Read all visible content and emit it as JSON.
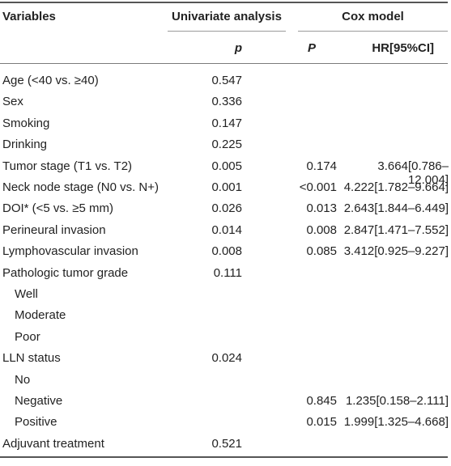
{
  "header": {
    "variables": "Variables",
    "univariate": "Univariate analysis",
    "cox": "Cox model",
    "p_lower": "p",
    "p_upper": "P",
    "hr": "HR[95%CI]"
  },
  "rows": [
    {
      "label": "Age (<40 vs. ≥40)",
      "p": "0.547",
      "cox_p": "",
      "hr": "",
      "indent": false
    },
    {
      "label": "Sex",
      "p": "0.336",
      "cox_p": "",
      "hr": "",
      "indent": false
    },
    {
      "label": "Smoking",
      "p": "0.147",
      "cox_p": "",
      "hr": "",
      "indent": false
    },
    {
      "label": "Drinking",
      "p": "0.225",
      "cox_p": "",
      "hr": "",
      "indent": false
    },
    {
      "label": "Tumor stage (T1 vs. T2)",
      "p": "0.005",
      "cox_p": "0.174",
      "hr": "3.664[0.786–12.004]",
      "indent": false
    },
    {
      "label": "Neck node stage (N0 vs. N+)",
      "p": "0.001",
      "cox_p": "<0.001",
      "hr": "4.222[1.782–9.664]",
      "indent": false
    },
    {
      "label": "DOI* (<5 vs. ≥5 mm)",
      "p": "0.026",
      "cox_p": "0.013",
      "hr": "2.643[1.844–6.449]",
      "indent": false
    },
    {
      "label": "Perineural invasion",
      "p": "0.014",
      "cox_p": "0.008",
      "hr": "2.847[1.471–7.552]",
      "indent": false
    },
    {
      "label": "Lymphovascular invasion",
      "p": "0.008",
      "cox_p": "0.085",
      "hr": "3.412[0.925–9.227]",
      "indent": false
    },
    {
      "label": "Pathologic tumor grade",
      "p": "0.111",
      "cox_p": "",
      "hr": "",
      "indent": false
    },
    {
      "label": "Well",
      "p": "",
      "cox_p": "",
      "hr": "",
      "indent": true
    },
    {
      "label": "Moderate",
      "p": "",
      "cox_p": "",
      "hr": "",
      "indent": true
    },
    {
      "label": "Poor",
      "p": "",
      "cox_p": "",
      "hr": "",
      "indent": true
    },
    {
      "label": "LLN status",
      "p": "0.024",
      "cox_p": "",
      "hr": "",
      "indent": false
    },
    {
      "label": "No",
      "p": "",
      "cox_p": "",
      "hr": "",
      "indent": true
    },
    {
      "label": "Negative",
      "p": "",
      "cox_p": "0.845",
      "hr": "1.235[0.158–2.111]",
      "indent": true
    },
    {
      "label": "Positive",
      "p": "",
      "cox_p": "0.015",
      "hr": "1.999[1.325–4.668]",
      "indent": true
    },
    {
      "label": "Adjuvant treatment",
      "p": "0.521",
      "cox_p": "",
      "hr": "",
      "indent": false
    }
  ]
}
